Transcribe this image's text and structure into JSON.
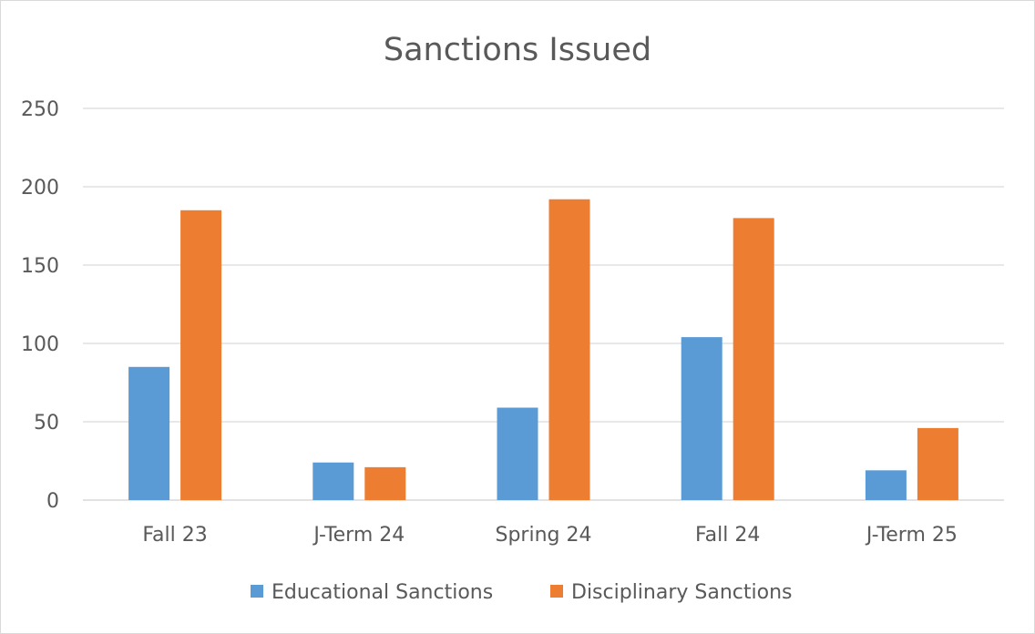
{
  "chart_data": {
    "type": "bar",
    "title": "Sanctions Issued",
    "xlabel": "",
    "ylabel": "",
    "categories": [
      "Fall 23",
      "J-Term 24",
      "Spring 24",
      "Fall 24",
      "J-Term 25"
    ],
    "series": [
      {
        "name": "Educational Sanctions",
        "color": "#5b9bd5",
        "values": [
          85,
          24,
          59,
          104,
          19
        ]
      },
      {
        "name": "Disciplinary Sanctions",
        "color": "#ed7d31",
        "values": [
          185,
          21,
          192,
          180,
          46
        ]
      }
    ],
    "ylim": [
      0,
      250
    ],
    "yticks": [
      "0",
      "50",
      "100",
      "150",
      "200",
      "250"
    ],
    "grid": true,
    "legend_position": "bottom"
  }
}
